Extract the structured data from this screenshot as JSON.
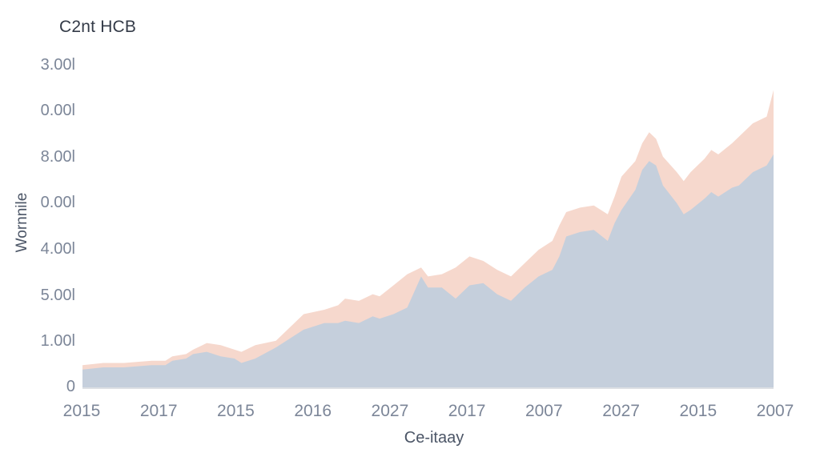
{
  "chart_data": {
    "type": "area",
    "title": "C2nt HCB",
    "ylabel": "Wornnile",
    "xlabel": "Ce-itaay",
    "x_tick_labels": [
      "2015",
      "2017",
      "2015",
      "2016",
      "2027",
      "2017",
      "2007",
      "2027",
      "2015",
      "2007"
    ],
    "y_tick_labels": [
      "0",
      "1.00l",
      "5.00l",
      "4.00l",
      "0.00l",
      "8.00l",
      "0.00l",
      "3.00l"
    ],
    "grid": false,
    "legend": "none",
    "colors": {
      "front": "#c5cfdc",
      "back": "#f6d8cd",
      "axis": "#d2d6dc"
    },
    "x": [
      0,
      0.03,
      0.06,
      0.1,
      0.12,
      0.13,
      0.15,
      0.16,
      0.18,
      0.2,
      0.22,
      0.23,
      0.25,
      0.28,
      0.3,
      0.32,
      0.35,
      0.37,
      0.38,
      0.4,
      0.42,
      0.43,
      0.45,
      0.47,
      0.49,
      0.5,
      0.52,
      0.54,
      0.56,
      0.58,
      0.6,
      0.62,
      0.64,
      0.66,
      0.68,
      0.69,
      0.7,
      0.72,
      0.74,
      0.76,
      0.77,
      0.78,
      0.8,
      0.81,
      0.82,
      0.83,
      0.84,
      0.86,
      0.87,
      0.88,
      0.9,
      0.91,
      0.92,
      0.94,
      0.95,
      0.97,
      0.99,
      1
    ],
    "series": [
      {
        "values": [
          0.08,
          0.09,
          0.09,
          0.1,
          0.1,
          0.12,
          0.13,
          0.15,
          0.16,
          0.14,
          0.13,
          0.11,
          0.13,
          0.18,
          0.22,
          0.26,
          0.29,
          0.29,
          0.3,
          0.29,
          0.32,
          0.31,
          0.33,
          0.36,
          0.5,
          0.45,
          0.45,
          0.4,
          0.46,
          0.47,
          0.42,
          0.39,
          0.45,
          0.5,
          0.53,
          0.59,
          0.68,
          0.7,
          0.71,
          0.66,
          0.74,
          0.8,
          0.89,
          0.98,
          1.02,
          1.0,
          0.91,
          0.83,
          0.78,
          0.8,
          0.85,
          0.88,
          0.86,
          0.9,
          0.91,
          0.97,
          1.0,
          1.05
        ]
      },
      {
        "values": [
          0.1,
          0.11,
          0.11,
          0.12,
          0.12,
          0.14,
          0.15,
          0.17,
          0.2,
          0.19,
          0.17,
          0.16,
          0.19,
          0.21,
          0.27,
          0.33,
          0.35,
          0.37,
          0.4,
          0.39,
          0.42,
          0.41,
          0.46,
          0.51,
          0.54,
          0.5,
          0.51,
          0.54,
          0.59,
          0.57,
          0.53,
          0.5,
          0.56,
          0.62,
          0.66,
          0.73,
          0.79,
          0.81,
          0.82,
          0.78,
          0.86,
          0.95,
          1.02,
          1.1,
          1.15,
          1.12,
          1.04,
          0.97,
          0.93,
          0.97,
          1.03,
          1.07,
          1.05,
          1.1,
          1.13,
          1.19,
          1.22,
          1.34
        ]
      }
    ]
  }
}
